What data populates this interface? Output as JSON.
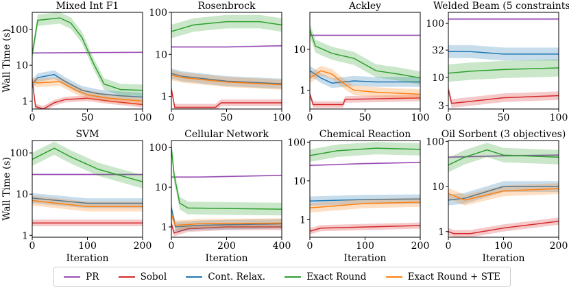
{
  "figure": {
    "ylabel": "Wall Time (s)",
    "xlabel": "Iteration"
  },
  "legend": [
    {
      "name": "PR",
      "color": "#9a4fb5"
    },
    {
      "name": "Sobol",
      "color": "#d62728"
    },
    {
      "name": "Cont. Relax.",
      "color": "#1f77b4"
    },
    {
      "name": "Exact Round",
      "color": "#2ca02c"
    },
    {
      "name": "Exact Round + STE",
      "color": "#ff7f0e"
    }
  ],
  "chart_data": [
    {
      "type": "line",
      "title": "Mixed Int F1",
      "xlim": [
        0,
        100
      ],
      "xticks": [
        0,
        50,
        100
      ],
      "ylim": [
        0.6,
        300
      ],
      "log_y": true,
      "yticks": [
        1,
        10,
        100
      ],
      "ytick_labels": [
        "1",
        "10",
        "100"
      ],
      "series": [
        {
          "name": "PR",
          "points": [
            [
              0,
              22
            ],
            [
              100,
              23
            ]
          ]
        },
        {
          "name": "Sobol",
          "points": [
            [
              0,
              4
            ],
            [
              3,
              0.7
            ],
            [
              10,
              0.6
            ],
            [
              20,
              0.9
            ],
            [
              30,
              1.1
            ],
            [
              50,
              1.2
            ],
            [
              70,
              1.0
            ],
            [
              100,
              0.8
            ]
          ]
        },
        {
          "name": "Cont. Relax.",
          "points": [
            [
              0,
              3
            ],
            [
              5,
              4.5
            ],
            [
              20,
              5.5
            ],
            [
              30,
              3.5
            ],
            [
              45,
              2.0
            ],
            [
              60,
              1.6
            ],
            [
              80,
              1.4
            ],
            [
              100,
              1.3
            ]
          ]
        },
        {
          "name": "Exact Round",
          "points": [
            [
              0,
              20
            ],
            [
              5,
              180
            ],
            [
              25,
              210
            ],
            [
              35,
              150
            ],
            [
              45,
              60
            ],
            [
              55,
              12
            ],
            [
              65,
              3
            ],
            [
              80,
              2.1
            ],
            [
              100,
              2.0
            ]
          ]
        },
        {
          "name": "Exact Round + STE",
          "points": [
            [
              0,
              3.5
            ],
            [
              5,
              3.2
            ],
            [
              25,
              3.5
            ],
            [
              40,
              2.0
            ],
            [
              50,
              1.5
            ],
            [
              70,
              1.2
            ],
            [
              100,
              1.0
            ]
          ]
        }
      ]
    },
    {
      "type": "line",
      "title": "Rosenbrock",
      "xlim": [
        0,
        100
      ],
      "xticks": [
        0,
        50,
        100
      ],
      "ylim": [
        0.5,
        100
      ],
      "log_y": true,
      "yticks": [
        1,
        10,
        100
      ],
      "ytick_labels": [
        "1",
        "10",
        "100"
      ],
      "series": [
        {
          "name": "PR",
          "points": [
            [
              0,
              15
            ],
            [
              50,
              15
            ],
            [
              100,
              16
            ]
          ]
        },
        {
          "name": "Sobol",
          "points": [
            [
              0,
              1.5
            ],
            [
              3,
              0.55
            ],
            [
              40,
              0.55
            ],
            [
              45,
              0.7
            ],
            [
              100,
              0.7
            ]
          ]
        },
        {
          "name": "Cont. Relax.",
          "points": [
            [
              0,
              3.5
            ],
            [
              10,
              3.0
            ],
            [
              50,
              2.3
            ],
            [
              100,
              2.0
            ]
          ]
        },
        {
          "name": "Exact Round",
          "points": [
            [
              0,
              35
            ],
            [
              20,
              50
            ],
            [
              50,
              60
            ],
            [
              80,
              60
            ],
            [
              100,
              50
            ]
          ]
        },
        {
          "name": "Exact Round + STE",
          "points": [
            [
              0,
              3.2
            ],
            [
              10,
              2.8
            ],
            [
              50,
              2.2
            ],
            [
              100,
              1.9
            ]
          ]
        }
      ]
    },
    {
      "type": "line",
      "title": "Ackley",
      "xlim": [
        0,
        100
      ],
      "xticks": [
        0,
        50,
        100
      ],
      "ylim": [
        0.35,
        80
      ],
      "log_y": true,
      "yticks": [
        1,
        10
      ],
      "ytick_labels": [
        "1",
        "10"
      ],
      "series": [
        {
          "name": "PR",
          "points": [
            [
              0,
              22
            ],
            [
              100,
              22
            ]
          ]
        },
        {
          "name": "Sobol",
          "points": [
            [
              0,
              0.8
            ],
            [
              3,
              0.45
            ],
            [
              30,
              0.45
            ],
            [
              32,
              0.6
            ],
            [
              100,
              0.65
            ]
          ]
        },
        {
          "name": "Cont. Relax.",
          "points": [
            [
              0,
              3
            ],
            [
              10,
              2.0
            ],
            [
              20,
              1.5
            ],
            [
              40,
              1.7
            ],
            [
              60,
              1.6
            ],
            [
              100,
              1.6
            ]
          ]
        },
        {
          "name": "Exact Round",
          "points": [
            [
              0,
              30
            ],
            [
              5,
              12
            ],
            [
              20,
              8
            ],
            [
              40,
              6
            ],
            [
              60,
              3
            ],
            [
              80,
              2.5
            ],
            [
              100,
              2
            ]
          ]
        },
        {
          "name": "Exact Round + STE",
          "points": [
            [
              0,
              2
            ],
            [
              10,
              3.0
            ],
            [
              20,
              2.5
            ],
            [
              30,
              1.5
            ],
            [
              40,
              1.0
            ],
            [
              60,
              0.9
            ],
            [
              100,
              0.8
            ]
          ]
        }
      ]
    },
    {
      "type": "line",
      "title": "Welded Beam (5 constraints)",
      "xlim": [
        0,
        100
      ],
      "xticks": [
        0,
        50,
        100
      ],
      "ylim": [
        2.6,
        160
      ],
      "log_y": true,
      "yticks": [
        3,
        10,
        32,
        100
      ],
      "ytick_labels": [
        "3",
        "10",
        "32",
        "100"
      ],
      "series": [
        {
          "name": "PR",
          "points": [
            [
              0,
              120
            ],
            [
              100,
              120
            ]
          ]
        },
        {
          "name": "Sobol",
          "points": [
            [
              0,
              6
            ],
            [
              3,
              3.3
            ],
            [
              20,
              3.6
            ],
            [
              50,
              4.2
            ],
            [
              100,
              4.6
            ]
          ]
        },
        {
          "name": "Cont. Relax.",
          "points": [
            [
              0,
              30
            ],
            [
              20,
              30
            ],
            [
              50,
              27
            ],
            [
              100,
              27
            ]
          ]
        },
        {
          "name": "Exact Round",
          "points": [
            [
              0,
              12
            ],
            [
              20,
              13
            ],
            [
              50,
              14
            ],
            [
              100,
              15
            ]
          ]
        }
      ]
    },
    {
      "type": "line",
      "title": "SVM",
      "xlim": [
        0,
        200
      ],
      "xticks": [
        0,
        100,
        200
      ],
      "ylim": [
        0.9,
        200
      ],
      "log_y": true,
      "yticks": [
        1,
        10,
        100
      ],
      "ytick_labels": [
        "1",
        "10",
        "100"
      ],
      "series": [
        {
          "name": "PR",
          "points": [
            [
              0,
              30
            ],
            [
              200,
              30
            ]
          ]
        },
        {
          "name": "Sobol",
          "points": [
            [
              0,
              2
            ],
            [
              200,
              2
            ]
          ]
        },
        {
          "name": "Cont. Relax.",
          "points": [
            [
              0,
              8
            ],
            [
              100,
              6
            ],
            [
              200,
              6
            ]
          ]
        },
        {
          "name": "Exact Round",
          "points": [
            [
              0,
              70
            ],
            [
              40,
              130
            ],
            [
              70,
              80
            ],
            [
              120,
              40
            ],
            [
              200,
              20
            ]
          ]
        },
        {
          "name": "Exact Round + STE",
          "points": [
            [
              0,
              7
            ],
            [
              100,
              5
            ],
            [
              200,
              5
            ]
          ]
        }
      ]
    },
    {
      "type": "line",
      "title": "Cellular Network",
      "xlim": [
        0,
        400
      ],
      "xticks": [
        0,
        200,
        400
      ],
      "ylim": [
        0.55,
        150
      ],
      "log_y": true,
      "yticks": [
        1,
        10,
        100
      ],
      "ytick_labels": [
        "1",
        "10",
        "100"
      ],
      "series": [
        {
          "name": "PR",
          "points": [
            [
              0,
              18
            ],
            [
              100,
              18
            ],
            [
              400,
              20
            ]
          ]
        },
        {
          "name": "Sobol",
          "points": [
            [
              0,
              1.2
            ],
            [
              10,
              0.7
            ],
            [
              60,
              0.9
            ],
            [
              200,
              1.0
            ],
            [
              400,
              1.0
            ]
          ]
        },
        {
          "name": "Cont. Relax.",
          "points": [
            [
              0,
              3
            ],
            [
              15,
              1.0
            ],
            [
              100,
              1.1
            ],
            [
              400,
              1.2
            ]
          ]
        },
        {
          "name": "Exact Round",
          "points": [
            [
              0,
              100
            ],
            [
              10,
              20
            ],
            [
              30,
              4
            ],
            [
              60,
              3
            ],
            [
              400,
              2.8
            ]
          ]
        },
        {
          "name": "Exact Round + STE",
          "points": [
            [
              0,
              2
            ],
            [
              15,
              1.1
            ],
            [
              100,
              1.2
            ],
            [
              400,
              1.25
            ]
          ]
        }
      ]
    },
    {
      "type": "line",
      "title": "Chemical Reaction",
      "xlim": [
        0,
        200
      ],
      "xticks": [
        0,
        100,
        200
      ],
      "ylim": [
        0.35,
        110
      ],
      "log_y": true,
      "yticks": [
        1,
        10,
        100
      ],
      "ytick_labels": [
        "1",
        "10",
        "100"
      ],
      "series": [
        {
          "name": "PR",
          "points": [
            [
              0,
              25
            ],
            [
              100,
              28
            ],
            [
              200,
              30
            ]
          ]
        },
        {
          "name": "Sobol",
          "points": [
            [
              0,
              0.5
            ],
            [
              20,
              0.6
            ],
            [
              200,
              0.7
            ]
          ]
        },
        {
          "name": "Cont. Relax.",
          "points": [
            [
              0,
              3
            ],
            [
              100,
              3.3
            ],
            [
              200,
              3.4
            ]
          ]
        },
        {
          "name": "Exact Round",
          "points": [
            [
              0,
              45
            ],
            [
              50,
              60
            ],
            [
              120,
              70
            ],
            [
              200,
              65
            ]
          ]
        },
        {
          "name": "Exact Round + STE",
          "points": [
            [
              0,
              2
            ],
            [
              100,
              2.6
            ],
            [
              200,
              2.8
            ]
          ]
        }
      ]
    },
    {
      "type": "line",
      "title": "Oil Sorbent (3 objectives)",
      "xlim": [
        0,
        200
      ],
      "xticks": [
        0,
        100,
        200
      ],
      "ylim": [
        0.75,
        105
      ],
      "log_y": true,
      "yticks": [
        1,
        10,
        100
      ],
      "ytick_labels": [
        "1",
        "10",
        "100"
      ],
      "series": [
        {
          "name": "PR",
          "points": [
            [
              0,
              45
            ],
            [
              100,
              48
            ],
            [
              200,
              50
            ]
          ]
        },
        {
          "name": "Sobol",
          "points": [
            [
              0,
              1
            ],
            [
              10,
              0.9
            ],
            [
              40,
              0.9
            ],
            [
              100,
              1.2
            ],
            [
              200,
              1.7
            ]
          ]
        },
        {
          "name": "Cont. Relax.",
          "points": [
            [
              0,
              5
            ],
            [
              30,
              5.5
            ],
            [
              100,
              10
            ],
            [
              200,
              10
            ]
          ]
        },
        {
          "name": "Exact Round",
          "points": [
            [
              0,
              30
            ],
            [
              30,
              45
            ],
            [
              70,
              65
            ],
            [
              100,
              50
            ],
            [
              200,
              45
            ]
          ]
        },
        {
          "name": "Exact Round + STE",
          "points": [
            [
              0,
              7
            ],
            [
              30,
              5
            ],
            [
              100,
              8
            ],
            [
              200,
              9
            ]
          ]
        }
      ]
    }
  ]
}
